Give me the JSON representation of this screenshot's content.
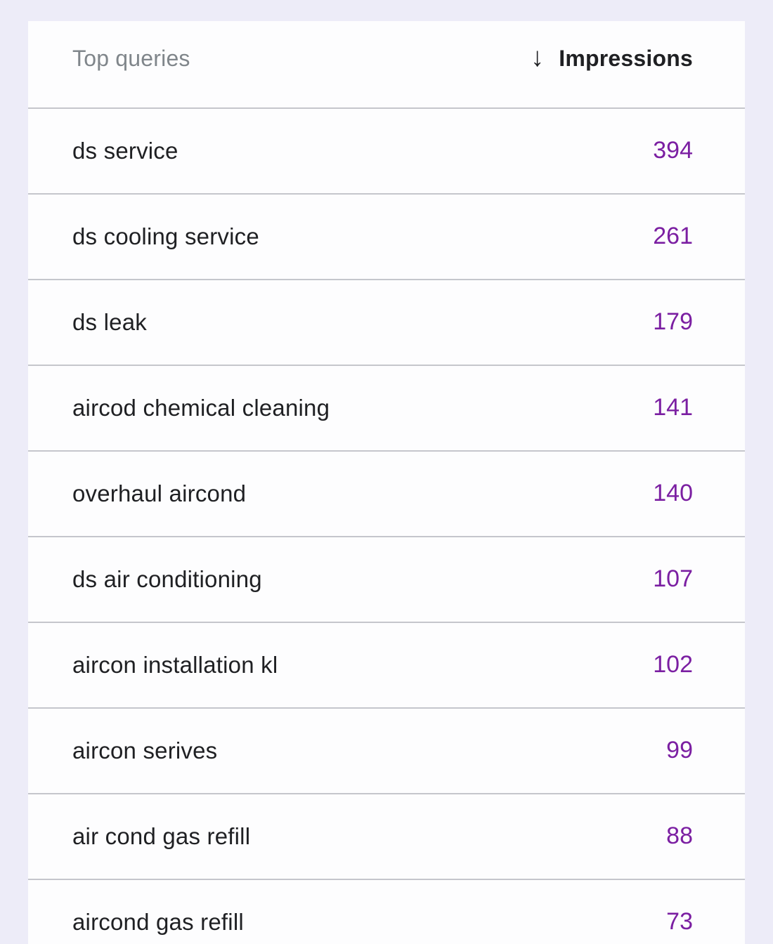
{
  "table": {
    "header": {
      "query_column_label": "Top queries",
      "metric_column_label": "Impressions",
      "sort_icon": "arrow-downward",
      "sort_icon_glyph": "↓"
    },
    "rows": [
      {
        "query": "ds service",
        "impressions": "394"
      },
      {
        "query": "ds cooling service",
        "impressions": "261"
      },
      {
        "query": "ds leak",
        "impressions": "179"
      },
      {
        "query": "aircod chemical cleaning",
        "impressions": "141"
      },
      {
        "query": "overhaul aircond",
        "impressions": "140"
      },
      {
        "query": "ds air conditioning",
        "impressions": "107"
      },
      {
        "query": "aircon installation kl",
        "impressions": "102"
      },
      {
        "query": "aircon serives",
        "impressions": "99"
      },
      {
        "query": "air cond gas refill",
        "impressions": "88"
      },
      {
        "query": "aircond gas refill",
        "impressions": "73"
      }
    ]
  },
  "colors": {
    "background": "#EDECF8",
    "card": "#FDFDFE",
    "divider": "#C5C6CC",
    "row_text": "#1F2023",
    "header_gray": "#80868B",
    "impressions_value": "#7B1FA2"
  }
}
